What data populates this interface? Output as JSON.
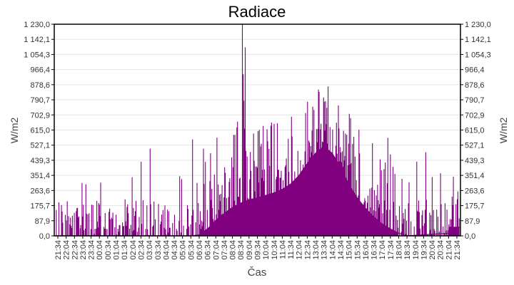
{
  "chart_data": {
    "type": "bar",
    "title": "Radiace",
    "xlabel": "Čas",
    "ylabel": "W/m2",
    "ylabel_right": "W/m2",
    "ylim": [
      0,
      1230
    ],
    "grid": true,
    "legend": "none",
    "color": "#800080",
    "y_ticks": [
      "0,0",
      "87,9",
      "175,7",
      "263,6",
      "351,4",
      "439,3",
      "527,1",
      "615,0",
      "702,9",
      "790,7",
      "878,6",
      "966,4",
      "1 054,3",
      "1 142,1",
      "1 230,0"
    ],
    "x_ticks": [
      "21:34",
      "22:04",
      "22:34",
      "23:04",
      "23:34",
      "00:04",
      "00:34",
      "01:04",
      "01:34",
      "02:04",
      "02:34",
      "03:04",
      "03:34",
      "04:04",
      "04:34",
      "05:04",
      "05:34",
      "06:04",
      "06:34",
      "07:04",
      "07:34",
      "08:04",
      "08:34",
      "09:04",
      "09:34",
      "10:04",
      "10:34",
      "11:04",
      "11:34",
      "12:04",
      "12:34",
      "13:04",
      "13:34",
      "14:04",
      "14:34",
      "15:04",
      "15:34",
      "16:04",
      "16:34",
      "17:04",
      "17:34",
      "18:04",
      "18:34",
      "19:04",
      "19:34",
      "20:04",
      "20:34",
      "21:04",
      "21:34"
    ],
    "baseline_curve": {
      "x": [
        "21:34",
        "05:34",
        "06:04",
        "06:34",
        "07:04",
        "07:34",
        "08:04",
        "08:34",
        "09:04",
        "09:34",
        "10:04",
        "10:34",
        "11:04",
        "11:34",
        "12:04",
        "12:34",
        "13:04",
        "13:34",
        "14:04",
        "14:34",
        "15:04",
        "15:34",
        "16:04",
        "16:34",
        "17:04",
        "17:34",
        "18:04",
        "18:34",
        "21:04",
        "21:34"
      ],
      "values": [
        0,
        0,
        5,
        40,
        90,
        130,
        165,
        190,
        210,
        220,
        235,
        250,
        270,
        300,
        350,
        420,
        480,
        520,
        480,
        400,
        300,
        220,
        160,
        110,
        70,
        40,
        15,
        0,
        15,
        50
      ]
    },
    "spike_envelope": {
      "x": [
        "21:34",
        "23:34",
        "01:34",
        "03:34",
        "05:34",
        "07:34",
        "08:34",
        "08:40",
        "09:34",
        "10:34",
        "11:34",
        "12:34",
        "13:04",
        "13:34",
        "14:04",
        "14:34",
        "15:34",
        "16:34",
        "17:34",
        "18:34",
        "19:34",
        "20:34",
        "21:34"
      ],
      "values": [
        615,
        215,
        615,
        615,
        580,
        620,
        700,
        1230,
        720,
        700,
        700,
        880,
        880,
        880,
        880,
        800,
        700,
        640,
        600,
        560,
        560,
        440,
        615
      ]
    },
    "annotations": {
      "peak_value": 1230,
      "peak_time": "08:40"
    }
  }
}
